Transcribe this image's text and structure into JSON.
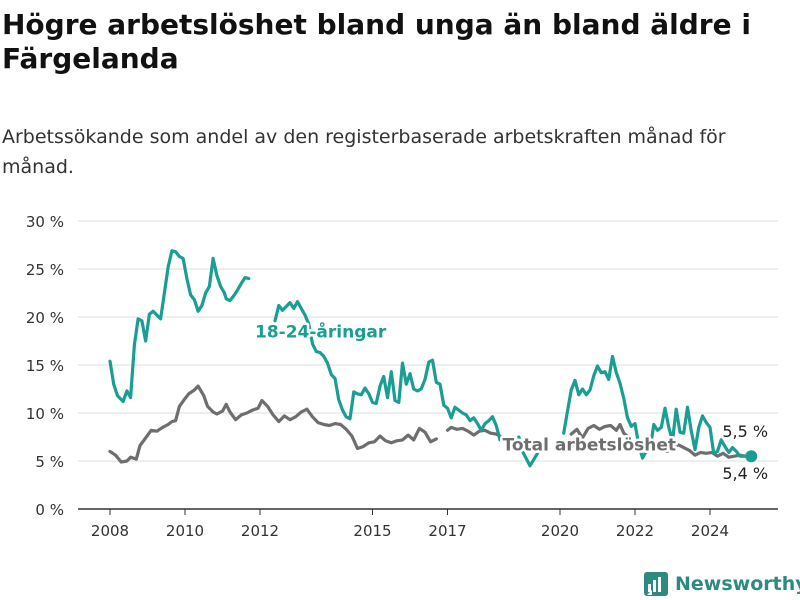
{
  "title": "Högre arbetslöshet bland unga än bland äldre i Färgelanda",
  "subtitle": "Arbetssökande som andel av den registerbaserade arbetskraften månad för månad.",
  "brand": "Newsworthy",
  "colors": {
    "youth": "#1a9e93",
    "total": "#6e6e6e",
    "grid": "#dddddd",
    "brand": "#2c8a82"
  },
  "chart_data": {
    "type": "line",
    "title": "Högre arbetslöshet bland unga än bland äldre i Färgelanda",
    "ylim": [
      0,
      30
    ],
    "y_ticks": [
      0,
      5,
      10,
      15,
      20,
      25,
      30
    ],
    "y_tick_labels": [
      "0 %",
      "5 %",
      "10 %",
      "15 %",
      "20 %",
      "25 %",
      "30 %"
    ],
    "x_ticks": [
      2008,
      2010,
      2012,
      2015,
      2017,
      2020,
      2022,
      2024
    ],
    "x_tick_labels": [
      "2008",
      "2010",
      "2012",
      "2015",
      "2017",
      "2020",
      "2022",
      "2024"
    ],
    "grid": true,
    "series": [
      {
        "name": "18-24-åringar",
        "label_point": [
          2012.0,
          18.5
        ],
        "end_label": "5,5 %",
        "x": [
          2008.0,
          2008.1,
          2008.2,
          2008.35,
          2008.45,
          2008.55,
          2008.65,
          2008.75,
          2008.85,
          2008.95,
          2009.05,
          2009.15,
          2009.25,
          2009.35,
          2009.45,
          2009.55,
          2009.65,
          2009.75,
          2009.85,
          2009.95,
          2010.05,
          2010.15,
          2010.25,
          2010.35,
          2010.45,
          2010.55,
          2010.65,
          2010.75,
          2010.85,
          2010.95,
          2011.05,
          2011.1,
          2011.2,
          2011.3,
          2011.4,
          2011.5,
          2011.6,
          2011.7,
          2011.8,
          2011.9,
          2012.0,
          null,
          2012.4,
          2012.5,
          2012.6,
          2012.7,
          2012.8,
          2012.9,
          2013.0,
          2013.1,
          2013.2,
          2013.3,
          2013.4,
          2013.5,
          2013.6,
          2013.7,
          2013.8,
          2013.9,
          2014.0,
          2014.1,
          2014.2,
          2014.3,
          2014.4,
          2014.5,
          2014.6,
          2014.7,
          2014.8,
          2014.9,
          2015.0,
          2015.1,
          2015.2,
          2015.3,
          2015.4,
          2015.5,
          2015.6,
          2015.7,
          2015.8,
          2015.9,
          2016.0,
          2016.1,
          2016.2,
          2016.3,
          2016.4,
          2016.5,
          2016.6,
          2016.7,
          2016.8,
          2016.9,
          2017.0,
          2017.1,
          2017.2,
          2017.3,
          2017.4,
          2017.5,
          2017.6,
          2017.7,
          2017.8,
          2017.9,
          2018.0,
          2018.1,
          2018.2,
          2018.3,
          2018.4,
          null,
          2018.9,
          2019.0,
          2019.2,
          2019.4,
          2019.6,
          2019.8,
          2019.9,
          null,
          2020.1,
          2020.2,
          2020.3,
          2020.4,
          2020.5,
          2020.6,
          2020.7,
          2020.8,
          2020.9,
          2021.0,
          2021.1,
          2021.2,
          2021.3,
          2021.4,
          2021.5,
          2021.6,
          2021.7,
          2021.8,
          2021.9,
          2022.0,
          2022.1,
          2022.2,
          2022.3,
          2022.4,
          2022.5,
          2022.6,
          2022.7,
          2022.8,
          2022.9,
          2023.0,
          2023.1,
          2023.2,
          2023.3,
          2023.4,
          2023.5,
          2023.6,
          2023.7,
          2023.8,
          2023.9,
          2024.0,
          2024.1,
          2024.2,
          2024.3,
          2024.4,
          2024.5,
          2024.6,
          2024.7,
          2024.8,
          2024.9,
          2025.0,
          2025.1
        ],
        "values": [
          15.4,
          13.0,
          11.8,
          11.2,
          12.3,
          11.6,
          17.1,
          19.8,
          19.6,
          17.5,
          20.3,
          20.6,
          20.2,
          19.8,
          22.5,
          25.2,
          26.9,
          26.8,
          26.3,
          26.1,
          24.0,
          22.3,
          21.8,
          20.6,
          21.2,
          22.5,
          23.2,
          26.1,
          24.3,
          23.2,
          22.5,
          21.9,
          21.7,
          22.2,
          22.8,
          23.5,
          24.1,
          24.0,
          null,
          null,
          null,
          null,
          19.6,
          21.2,
          20.7,
          21.1,
          21.5,
          20.9,
          21.6,
          20.9,
          20.2,
          19.3,
          17.2,
          16.4,
          16.3,
          15.9,
          15.2,
          14.0,
          13.6,
          11.4,
          10.3,
          9.6,
          9.4,
          12.2,
          12.0,
          11.9,
          12.6,
          12.0,
          11.1,
          11.0,
          12.8,
          13.8,
          11.6,
          14.3,
          11.3,
          11.1,
          15.2,
          13.0,
          14.1,
          12.5,
          12.3,
          12.5,
          13.5,
          15.3,
          15.5,
          13.2,
          13.0,
          10.8,
          10.5,
          9.5,
          10.6,
          10.3,
          10.0,
          9.8,
          9.2,
          9.5,
          8.9,
          8.2,
          8.9,
          9.2,
          9.6,
          8.7,
          7.2,
          null,
          7.5,
          6.0,
          4.5,
          5.8,
          null,
          null,
          null,
          null,
          7.9,
          10.2,
          12.4,
          13.4,
          11.9,
          12.5,
          11.9,
          12.4,
          13.9,
          14.9,
          14.2,
          14.3,
          13.5,
          15.9,
          14.2,
          13.1,
          11.5,
          9.5,
          8.6,
          8.9,
          6.7,
          5.3,
          6.0,
          6.2,
          8.8,
          8.2,
          8.5,
          10.5,
          8.5,
          7.1,
          10.4,
          8.0,
          7.9,
          10.6,
          8.1,
          6.2,
          8.5,
          9.7,
          9.0,
          8.5,
          5.8,
          6.0,
          7.2,
          6.5,
          5.9,
          6.4,
          6.0,
          5.5,
          5.5,
          5.5,
          5.5
        ]
      },
      {
        "name": "Total arbetslöshet",
        "label_point": [
          2018.6,
          6.7
        ],
        "end_label": "5,4 %",
        "x": [
          2008.0,
          2008.15,
          2008.3,
          2008.45,
          2008.55,
          2008.7,
          2008.8,
          2008.95,
          2009.1,
          2009.25,
          2009.4,
          2009.55,
          2009.65,
          2009.75,
          2009.85,
          2010.0,
          2010.1,
          2010.25,
          2010.35,
          2010.5,
          2010.6,
          2010.75,
          2010.85,
          2011.0,
          2011.1,
          2011.2,
          2011.35,
          2011.5,
          2011.65,
          2011.8,
          2011.95,
          2012.05,
          2012.2,
          2012.35,
          2012.5,
          2012.65,
          2012.8,
          2012.95,
          2013.1,
          2013.25,
          2013.4,
          2013.55,
          2013.7,
          2013.85,
          2014.0,
          2014.15,
          2014.3,
          2014.45,
          2014.6,
          2014.75,
          2014.9,
          2015.05,
          2015.2,
          2015.35,
          2015.5,
          2015.65,
          2015.8,
          2015.95,
          2016.1,
          2016.25,
          2016.4,
          2016.55,
          2016.7,
          null,
          2017.0,
          2017.1,
          2017.25,
          2017.4,
          2017.55,
          2017.7,
          2017.85,
          2018.0,
          2018.15,
          2018.3,
          2018.4,
          null,
          2020.3,
          2020.45,
          2020.6,
          2020.75,
          2020.9,
          2021.05,
          2021.2,
          2021.35,
          2021.5,
          2021.6,
          2021.7,
          2021.85,
          null,
          2022.1,
          2022.25,
          2022.4,
          2022.55,
          2022.7,
          2022.85,
          2023.0,
          2023.15,
          2023.3,
          2023.45,
          2023.6,
          2023.75,
          2023.9,
          2024.05,
          2024.2,
          2024.35,
          2024.5,
          2024.65,
          2024.8,
          2024.95,
          2025.1
        ],
        "values": [
          6.0,
          5.6,
          4.9,
          5.0,
          5.4,
          5.2,
          6.6,
          7.4,
          8.2,
          8.1,
          8.5,
          8.8,
          9.1,
          9.2,
          10.7,
          11.5,
          12.0,
          12.4,
          12.8,
          11.8,
          10.7,
          10.1,
          9.9,
          10.2,
          10.9,
          10.1,
          9.3,
          9.8,
          10.0,
          10.3,
          10.5,
          11.3,
          10.7,
          9.8,
          9.1,
          9.7,
          9.3,
          9.6,
          10.1,
          10.4,
          9.6,
          9.0,
          8.8,
          8.7,
          8.9,
          8.8,
          8.3,
          7.6,
          6.3,
          6.5,
          6.9,
          7.0,
          7.6,
          7.1,
          6.9,
          7.1,
          7.2,
          7.7,
          7.2,
          8.4,
          8.0,
          7.0,
          7.3,
          null,
          8.2,
          8.5,
          8.3,
          8.4,
          8.1,
          7.7,
          8.1,
          8.2,
          7.9,
          7.8,
          7.6,
          null,
          7.8,
          8.3,
          7.4,
          8.4,
          8.7,
          8.3,
          8.6,
          8.7,
          8.2,
          8.8,
          7.9,
          7.4,
          null,
          6.5,
          6.6,
          6.8,
          6.2,
          6.3,
          6.0,
          6.3,
          6.7,
          6.4,
          6.1,
          5.6,
          5.9,
          5.8,
          5.9,
          5.5,
          5.8,
          5.4,
          5.5,
          5.6,
          5.5,
          5.4
        ]
      }
    ]
  }
}
